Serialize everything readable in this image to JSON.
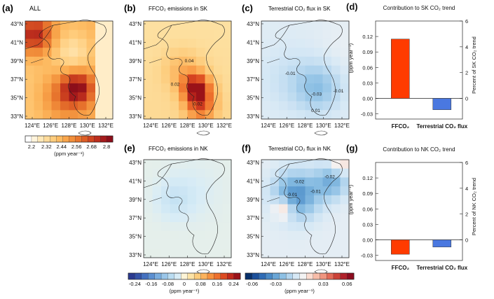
{
  "colors": {
    "bar_ffco2": "#ff3b00",
    "bar_terr": "#4a78e0",
    "sea": "#e6f0f5"
  },
  "axes": {
    "lat_labels": [
      "43°N",
      "41°N",
      "39°N",
      "37°N",
      "35°N",
      "33°N"
    ],
    "lon_labels": [
      "124°E",
      "126°E",
      "128°E",
      "130°E",
      "132°E"
    ]
  },
  "panels": {
    "a": {
      "letter": "(a)",
      "title": "ALL"
    },
    "b": {
      "letter": "(b)",
      "title": "FFCO₂ emissions in SK"
    },
    "c": {
      "letter": "(c)",
      "title": "Terrestrial CO₂ flux in SK"
    },
    "e": {
      "letter": "(e)",
      "title": "FFCO₂ emissions in NK"
    },
    "f": {
      "letter": "(f)",
      "title": "Terrestrial CO₂ flux in NK"
    }
  },
  "colorbars": {
    "all": {
      "ticks": [
        "2.2",
        "2.32",
        "2.44",
        "2.56",
        "2.68",
        "2.8"
      ],
      "unit": "(ppm year⁻¹)",
      "colors": [
        "#ffffff",
        "#fff4dc",
        "#ffe8b8",
        "#ffdb9a",
        "#ffcd7d",
        "#fdbb62",
        "#f9a64c",
        "#f28f3b",
        "#e8762e",
        "#dd5e26",
        "#cf4520",
        "#bd2e1d",
        "#a61b1c",
        "#8c0e1a"
      ]
    },
    "ffco2": {
      "ticks": [
        "-0.24",
        "-0.16",
        "-0.08",
        "0",
        "0.08",
        "0.16",
        "0.24"
      ],
      "unit": "(ppm year⁻¹)",
      "colors": [
        "#2b3a8f",
        "#3553a8",
        "#4471c0",
        "#5b8fd1",
        "#7aaddf",
        "#9ac6e9",
        "#badcf1",
        "#d8ecf6",
        "#fdf4d6",
        "#fde3a6",
        "#fdcc7c",
        "#fcb25c",
        "#f7923f",
        "#ee702d",
        "#dc4b22",
        "#c12a1c",
        "#9a1218"
      ]
    },
    "terr": {
      "ticks": [
        "-0.06",
        "-0.03",
        "0",
        "0.03",
        "0.06"
      ],
      "unit": "(ppm year⁻¹)",
      "colors": [
        "#08306b",
        "#1b4f9a",
        "#2f6cb5",
        "#4a8ac7",
        "#6aa6d6",
        "#8dc0e4",
        "#b3d5ee",
        "#d6e8f5",
        "#f3f3f3",
        "#fbdcd0",
        "#f7bca8",
        "#f0957f",
        "#e36b58",
        "#cc4238",
        "#b0212a",
        "#8c0b1f"
      ]
    }
  },
  "map_annotations": {
    "b": [
      "0.04",
      "0.02",
      "0.02"
    ],
    "c": [
      "-0.01",
      "-0.03",
      "-0.01",
      "0.01"
    ],
    "f": [
      "-0.01",
      "-0.01",
      "-0.02",
      "-0.02"
    ]
  },
  "chart_data": [
    {
      "panel": "(d)",
      "type": "bar",
      "title": "Contribution to SK CO₂ trend",
      "categories": [
        "FFCO₂",
        "Terrestrial CO₂ flux"
      ],
      "values": [
        0.115,
        -0.022
      ],
      "ylabel": "(ppm year⁻¹)",
      "y2label": "Percent of SK CO₂ trend",
      "ylim": [
        -0.04,
        0.15
      ],
      "yticks": [
        "-0.03",
        "0.00",
        "0.03",
        "0.06",
        "0.09",
        "0.12"
      ],
      "y2lim": [
        -1.6,
        6.0
      ],
      "y2ticks": [
        "0",
        "2",
        "4",
        "6"
      ]
    },
    {
      "panel": "(g)",
      "type": "bar",
      "title": "Contribution to NK CO₂ trend",
      "categories": [
        "FFCO₂",
        "Terrestrial CO₂ flux"
      ],
      "values": [
        -0.028,
        -0.014
      ],
      "ylabel": "(ppm year⁻¹)",
      "y2label": "Percent of NK CO₂ trend",
      "ylim": [
        -0.04,
        0.15
      ],
      "yticks": [
        "-0.03",
        "0.00",
        "0.03",
        "0.06",
        "0.09",
        "0.12"
      ],
      "y2lim": [
        -1.6,
        6.0
      ],
      "y2ticks": [
        "0",
        "2",
        "4",
        "6"
      ]
    }
  ]
}
